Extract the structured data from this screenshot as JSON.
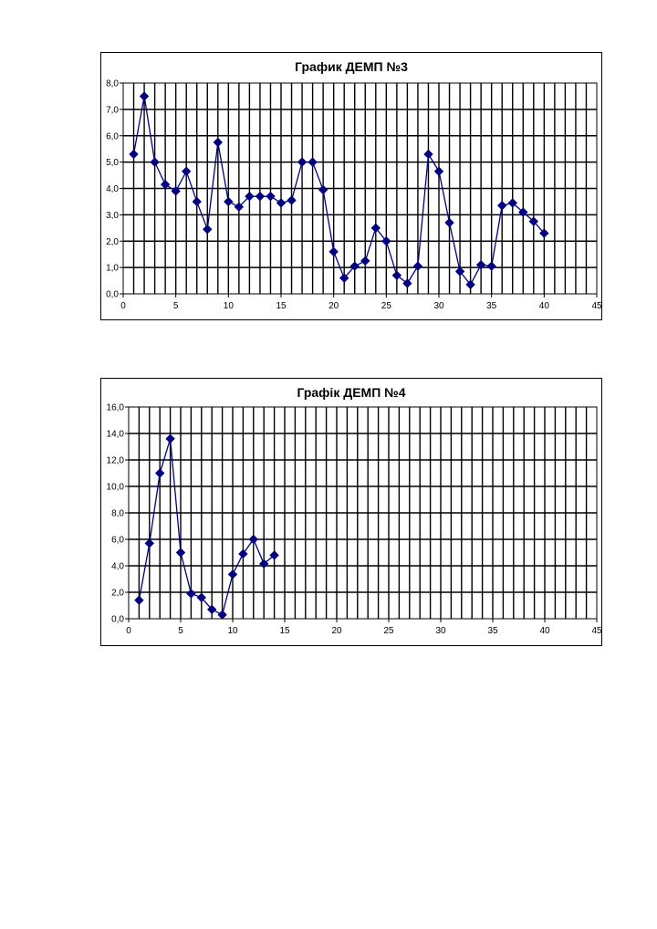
{
  "colors": {
    "series": "#000080",
    "grid": "#000000",
    "background": "#ffffff"
  },
  "chart_data": [
    {
      "type": "line",
      "title": "График ДЕМП №3",
      "xlabel": "",
      "ylabel": "",
      "xlim": [
        0,
        45
      ],
      "ylim": [
        0,
        8
      ],
      "x_ticks": [
        "0",
        "5",
        "10",
        "15",
        "20",
        "25",
        "30",
        "35",
        "40",
        "45"
      ],
      "y_ticks": [
        "0,0",
        "1,0",
        "2,0",
        "3,0",
        "4,0",
        "5,0",
        "6,0",
        "7,0",
        "8,0"
      ],
      "grid": true,
      "marker": "diamond",
      "series": [
        {
          "x": [
            1,
            2,
            3,
            4,
            5,
            6,
            7,
            8,
            9,
            10,
            11,
            12,
            13,
            14,
            15,
            16,
            17,
            18,
            19,
            20,
            21,
            22,
            23,
            24,
            25,
            26,
            27,
            28,
            29,
            30,
            31,
            32,
            33,
            34,
            35,
            36,
            37,
            38,
            39,
            40
          ],
          "values": [
            5.3,
            7.5,
            5.0,
            4.15,
            3.9,
            4.65,
            3.5,
            2.45,
            5.75,
            3.5,
            3.3,
            3.7,
            3.7,
            3.7,
            3.45,
            3.55,
            5.0,
            5.0,
            3.95,
            1.6,
            0.6,
            1.05,
            1.25,
            2.5,
            2.0,
            0.7,
            0.4,
            1.05,
            5.3,
            4.65,
            2.7,
            0.85,
            0.35,
            1.1,
            1.05,
            3.35,
            3.45,
            3.1,
            2.75,
            2.3
          ]
        }
      ]
    },
    {
      "type": "line",
      "title": "Графік ДЕМП №4",
      "xlabel": "",
      "ylabel": "",
      "xlim": [
        0,
        45
      ],
      "ylim": [
        0,
        16
      ],
      "x_ticks": [
        "0",
        "5",
        "10",
        "15",
        "20",
        "25",
        "30",
        "35",
        "40",
        "45"
      ],
      "y_ticks": [
        "0,0",
        "2,0",
        "4,0",
        "6,0",
        "8,0",
        "10,0",
        "12,0",
        "14,0",
        "16,0"
      ],
      "grid": true,
      "marker": "diamond",
      "series": [
        {
          "x": [
            1,
            2,
            3,
            4,
            5,
            6,
            7,
            8,
            9,
            10,
            11,
            12,
            13,
            14
          ],
          "values": [
            1.4,
            5.7,
            11.0,
            13.6,
            5.0,
            1.9,
            1.6,
            0.7,
            0.3,
            3.35,
            4.9,
            6.0,
            4.15,
            4.8
          ]
        }
      ]
    }
  ]
}
